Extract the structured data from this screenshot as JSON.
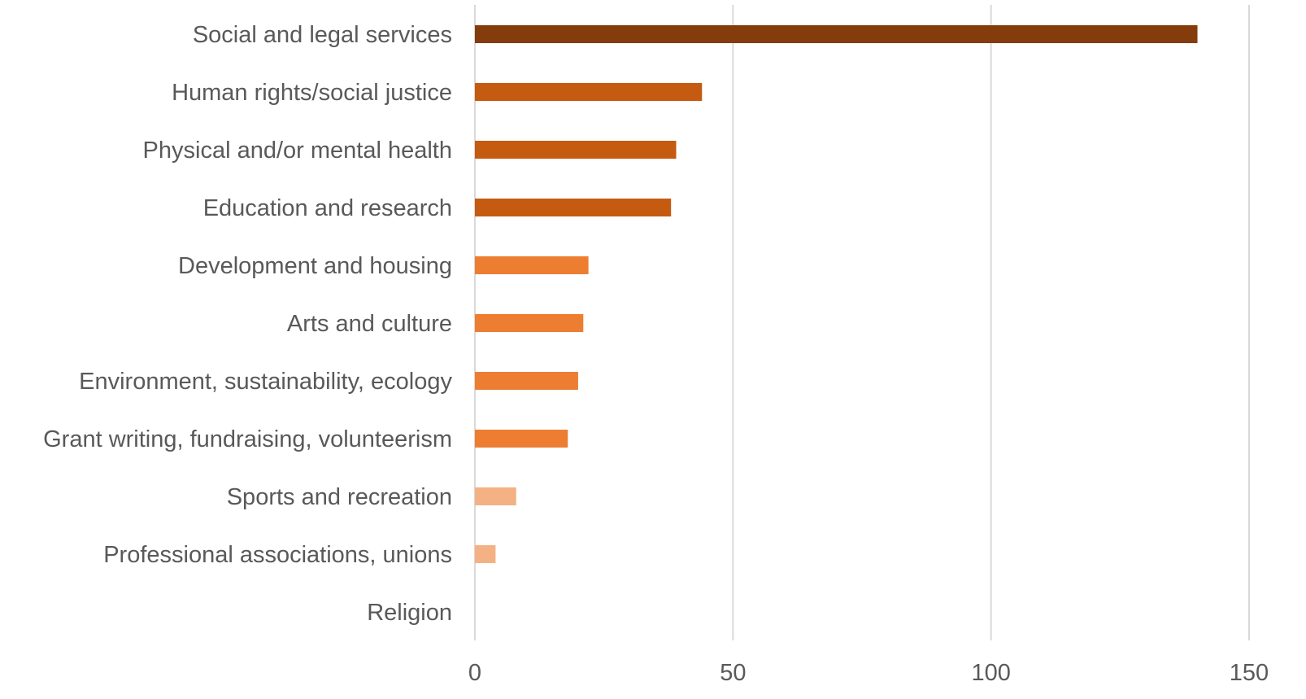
{
  "chart_data": {
    "type": "bar",
    "orientation": "horizontal",
    "title": "",
    "xlabel": "",
    "ylabel": "",
    "categories": [
      "Social and legal services",
      "Human rights/social justice",
      "Physical and/or mental health",
      "Education and research",
      "Development and housing",
      "Arts and culture",
      "Environment, sustainability, ecology",
      "Grant writing, fundraising, volunteerism",
      "Sports and recreation",
      "Professional associations, unions",
      "Religion"
    ],
    "values": [
      140,
      44,
      39,
      38,
      22,
      21,
      20,
      18,
      8,
      4,
      0
    ],
    "colors": [
      "#843C0C",
      "#C55A11",
      "#C55A11",
      "#C55A11",
      "#ED7D31",
      "#ED7D31",
      "#ED7D31",
      "#ED7D31",
      "#F4B183",
      "#F4B183",
      "#F4B183"
    ],
    "xlim": [
      0,
      150
    ],
    "xticks": [
      0,
      50,
      100,
      150
    ],
    "xtick_labels": [
      "0",
      "50",
      "100",
      "150"
    ],
    "grid": "vertical",
    "legend": "none"
  }
}
